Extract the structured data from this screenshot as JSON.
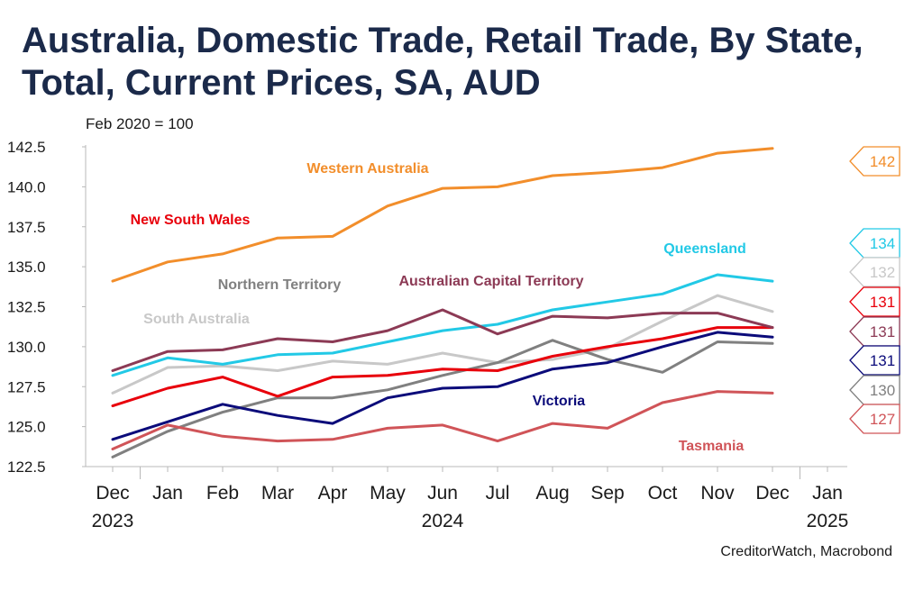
{
  "header": {
    "title": "Australia, Domestic Trade, Retail Trade, By State, Total, Current Prices, SA, AUD",
    "subtitle": "Feb 2020 = 100"
  },
  "footer": {
    "source": "CreditorWatch, Macrobond"
  },
  "chart_data": {
    "type": "line",
    "title": "Australia, Domestic Trade, Retail Trade, By State, Total, Current Prices, SA, AUD",
    "subtitle": "Feb 2020 = 100",
    "x": [
      "2023-12",
      "2024-01",
      "2024-02",
      "2024-03",
      "2024-04",
      "2024-05",
      "2024-06",
      "2024-07",
      "2024-08",
      "2024-09",
      "2024-10",
      "2024-11",
      "2024-12"
    ],
    "x_ticks": [
      {
        "month": "Dec",
        "year": "2023"
      },
      {
        "month": "Jan",
        "year": ""
      },
      {
        "month": "Feb",
        "year": ""
      },
      {
        "month": "Mar",
        "year": ""
      },
      {
        "month": "Apr",
        "year": ""
      },
      {
        "month": "May",
        "year": ""
      },
      {
        "month": "Jun",
        "year": "2024"
      },
      {
        "month": "Jul",
        "year": ""
      },
      {
        "month": "Aug",
        "year": ""
      },
      {
        "month": "Sep",
        "year": ""
      },
      {
        "month": "Oct",
        "year": ""
      },
      {
        "month": "Nov",
        "year": ""
      },
      {
        "month": "Dec",
        "year": ""
      },
      {
        "month": "Jan",
        "year": "2025"
      }
    ],
    "ylim": [
      122.5,
      142.5
    ],
    "yticks": [
      "142.5",
      "140.0",
      "137.5",
      "135.0",
      "132.5",
      "130.0",
      "127.5",
      "125.0",
      "122.5"
    ],
    "grid": false,
    "series": [
      {
        "name": "Western Australia",
        "color": "#f28e2b",
        "end_label": "142",
        "values": [
          134.1,
          135.3,
          135.8,
          136.8,
          136.9,
          138.8,
          139.9,
          140.0,
          140.7,
          140.9,
          141.2,
          142.1,
          142.4
        ]
      },
      {
        "name": "Queensland",
        "color": "#22c9e6",
        "end_label": "134",
        "values": [
          128.2,
          129.3,
          128.9,
          129.5,
          129.6,
          130.3,
          131.0,
          131.4,
          132.3,
          132.8,
          133.3,
          134.5,
          134.1
        ]
      },
      {
        "name": "South Australia",
        "color": "#c8c8c8",
        "end_label": "132",
        "values": [
          127.1,
          128.7,
          128.8,
          128.5,
          129.1,
          128.9,
          129.6,
          129.0,
          129.2,
          129.9,
          131.6,
          133.2,
          132.2
        ]
      },
      {
        "name": "New South Wales",
        "color": "#e8000b",
        "end_label": "131",
        "values": [
          126.3,
          127.4,
          128.1,
          126.9,
          128.1,
          128.2,
          128.6,
          128.5,
          129.4,
          130.0,
          130.5,
          131.2,
          131.2
        ]
      },
      {
        "name": "Australian Capital Territory",
        "color": "#8c3a55",
        "end_label": "131",
        "values": [
          128.5,
          129.7,
          129.8,
          130.5,
          130.3,
          131.0,
          132.3,
          130.8,
          131.9,
          131.8,
          132.1,
          132.1,
          131.2
        ]
      },
      {
        "name": "Victoria",
        "color": "#0b0b7a",
        "end_label": "131",
        "values": [
          124.2,
          125.3,
          126.4,
          125.7,
          125.2,
          126.8,
          127.4,
          127.5,
          128.6,
          129.0,
          130.0,
          130.9,
          130.6
        ]
      },
      {
        "name": "Northern Territory",
        "color": "#808080",
        "end_label": "130",
        "values": [
          123.1,
          124.7,
          125.9,
          126.8,
          126.8,
          127.3,
          128.2,
          129.0,
          130.4,
          129.2,
          128.4,
          130.3,
          130.2
        ]
      },
      {
        "name": "Tasmania",
        "color": "#d05458",
        "end_label": "127",
        "values": [
          123.6,
          125.1,
          124.4,
          124.1,
          124.2,
          124.9,
          125.1,
          124.1,
          125.2,
          124.9,
          126.5,
          127.2,
          127.1
        ]
      }
    ]
  }
}
